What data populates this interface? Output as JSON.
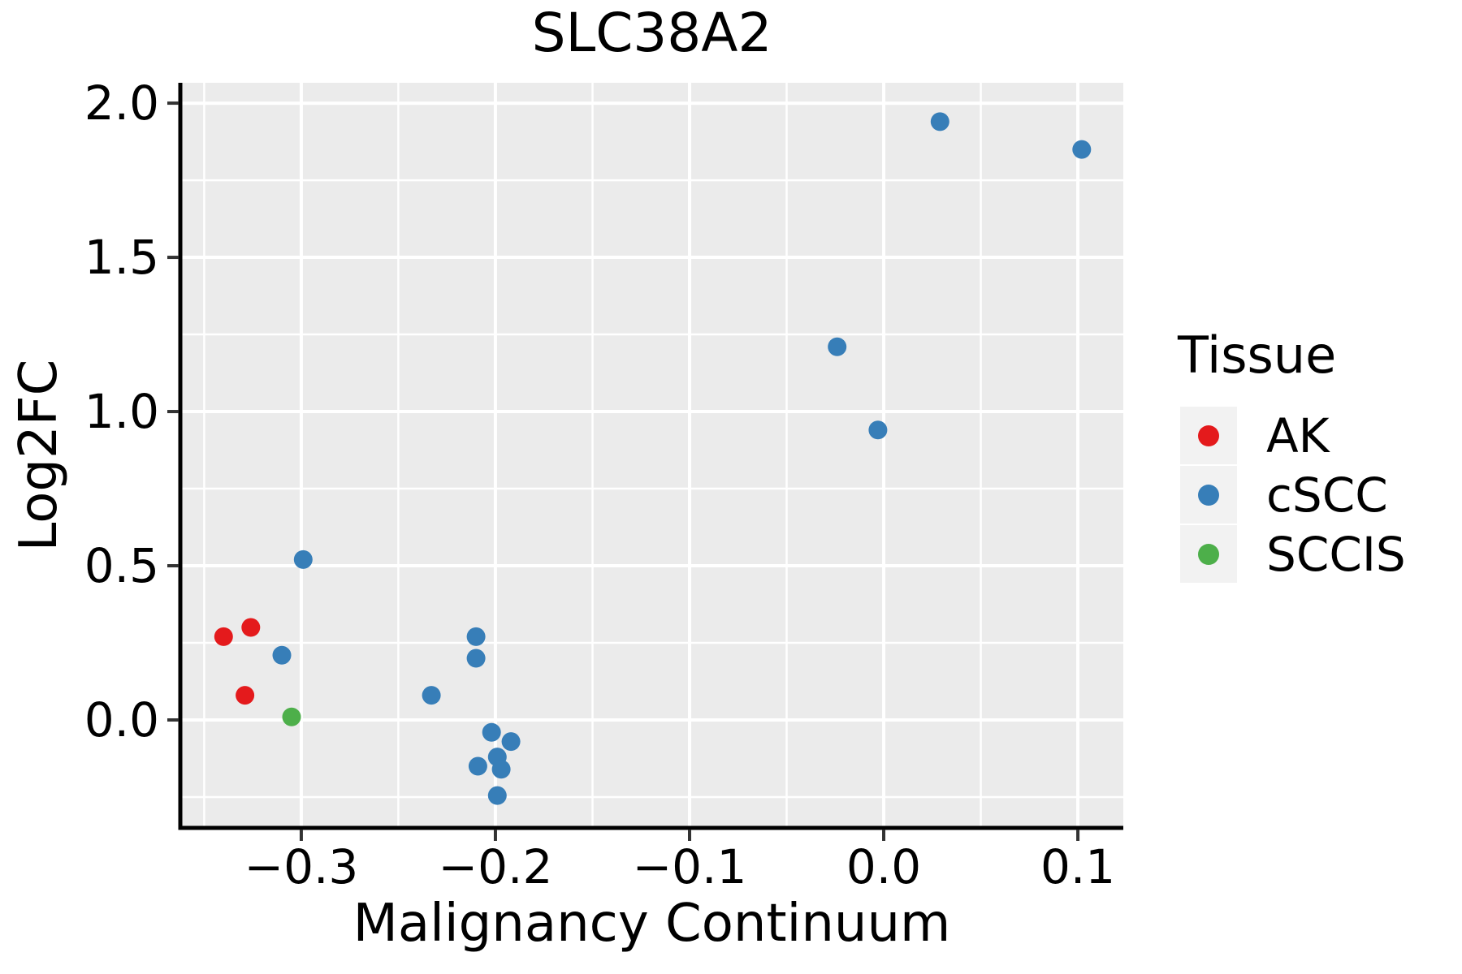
{
  "title": "SLC38A2",
  "legend": {
    "title": "Tissue",
    "items": [
      {
        "label": "AK",
        "color": "#E41A1C"
      },
      {
        "label": "cSCC",
        "color": "#377EB8"
      },
      {
        "label": "SCCIS",
        "color": "#4DAF4A"
      }
    ]
  },
  "colors": {
    "panel_background": "#EBEBEB",
    "grid_line": "#FFFFFF",
    "axis_line": "#000000",
    "tick_mark": "#333333",
    "text": "#000000",
    "legend_key_background": "#F2F2F2",
    "ak_red": "#E41A1C",
    "cscc_blue": "#377EB8",
    "sccis_green": "#4DAF4A"
  },
  "chart_data": {
    "type": "scatter",
    "title": "SLC38A2",
    "xlabel": "Malignancy Continuum",
    "ylabel": "Log2FC",
    "legend_title": "Tissue",
    "legend_position": "right",
    "grid": true,
    "xlim": [
      -0.3623,
      0.1234
    ],
    "ylim": [
      -0.35,
      2.066
    ],
    "x_ticks": [
      -0.3,
      -0.2,
      -0.1,
      0.0,
      0.1
    ],
    "x_tick_labels": [
      "−0.3",
      "−0.2",
      "−0.1",
      "0.0",
      "0.1"
    ],
    "x_minor_ticks": [
      -0.35,
      -0.25,
      -0.15,
      -0.05,
      0.05
    ],
    "y_ticks": [
      0.0,
      0.5,
      1.0,
      1.5,
      2.0
    ],
    "y_tick_labels": [
      "0.0",
      "0.5",
      "1.0",
      "1.5",
      "2.0"
    ],
    "y_minor_ticks": [
      -0.25,
      0.25,
      0.75,
      1.25,
      1.75
    ],
    "series": [
      {
        "name": "AK",
        "color": "#E41A1C",
        "points": [
          [
            -0.34,
            0.27
          ],
          [
            -0.326,
            0.3
          ],
          [
            -0.329,
            0.08
          ]
        ]
      },
      {
        "name": "cSCC",
        "color": "#377EB8",
        "points": [
          [
            -0.299,
            0.52
          ],
          [
            -0.31,
            0.21
          ],
          [
            -0.233,
            0.08
          ],
          [
            -0.21,
            0.27
          ],
          [
            -0.21,
            0.2
          ],
          [
            -0.202,
            -0.04
          ],
          [
            -0.192,
            -0.07
          ],
          [
            -0.199,
            -0.12
          ],
          [
            -0.209,
            -0.15
          ],
          [
            -0.197,
            -0.16
          ],
          [
            -0.199,
            -0.245
          ],
          [
            -0.024,
            1.21
          ],
          [
            -0.003,
            0.94
          ],
          [
            0.029,
            1.94
          ],
          [
            0.102,
            1.85
          ]
        ]
      },
      {
        "name": "SCCIS",
        "color": "#4DAF4A",
        "points": [
          [
            -0.305,
            0.01
          ]
        ]
      }
    ]
  }
}
